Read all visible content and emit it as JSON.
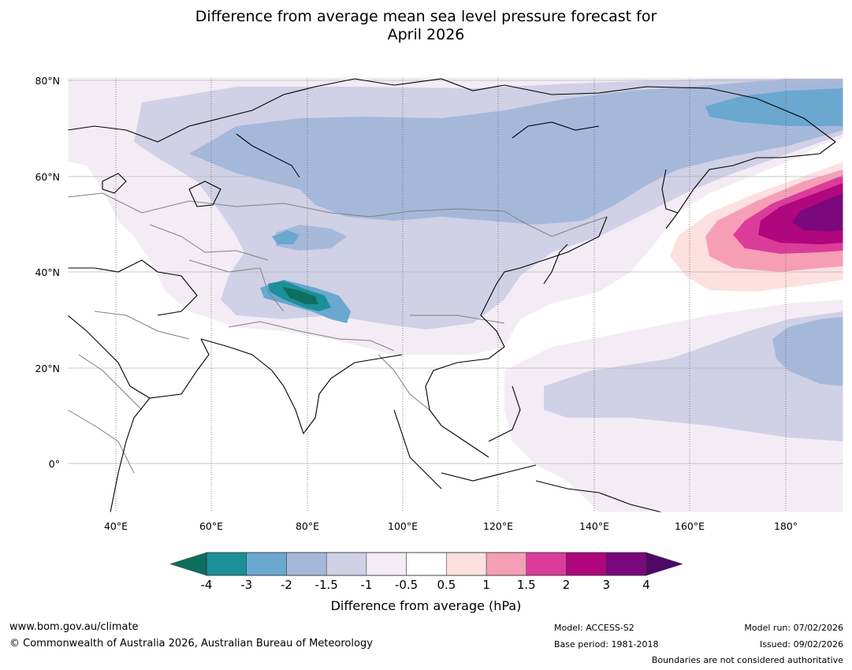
{
  "title": {
    "line1": "Difference from average mean sea level pressure forecast for",
    "line2": "April 2026"
  },
  "axes": {
    "lat_labels": [
      "80°N",
      "60°N",
      "40°N",
      "20°N",
      "0°"
    ],
    "lon_labels": [
      "40°E",
      "60°E",
      "80°E",
      "100°E",
      "120°E",
      "140°E",
      "160°E",
      "180°"
    ]
  },
  "colorbar": {
    "title": "Difference from average (hPa)",
    "ticks": [
      "-4",
      "-3",
      "-2",
      "-1.5",
      "-1",
      "-0.5",
      "0.5",
      "1",
      "1.5",
      "2",
      "3",
      "4"
    ],
    "colors": [
      "#0e6e5e",
      "#1b9098",
      "#6aa8d0",
      "#a6b8da",
      "#d0d0e6",
      "#f3ecf5",
      "#ffffff",
      "#fde0e0",
      "#f69eb6",
      "#db3c9a",
      "#b0067e",
      "#7b087c",
      "#4e0767"
    ]
  },
  "footer": {
    "url": "www.bom.gov.au/climate",
    "copyright": "© Commonwealth of Australia 2026, Australian Bureau of Meteorology",
    "model": "Model: ACCESS-S2",
    "base_period": "Base period: 1981-2018",
    "model_run": "Model run: 07/02/2026",
    "issued": "Issued: 09/02/2026",
    "disclaimer": "Boundaries are not considered authoritative"
  }
}
